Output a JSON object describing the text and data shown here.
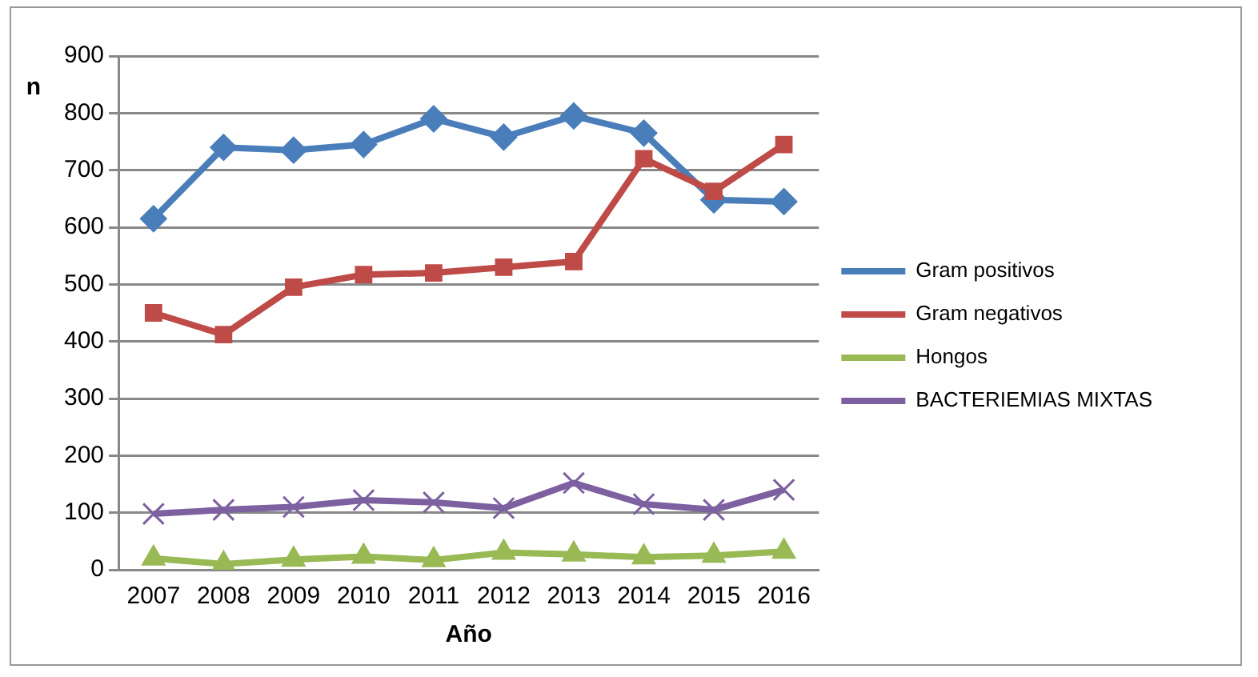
{
  "chart_data": {
    "type": "line",
    "xlabel": "Año",
    "ylabel": "n",
    "categories": [
      "2007",
      "2008",
      "2009",
      "2010",
      "2011",
      "2012",
      "2013",
      "2014",
      "2015",
      "2016"
    ],
    "series": [
      {
        "name": "Gram positivos",
        "color": "#4a7ebb",
        "marker": "diamond",
        "values": [
          615,
          740,
          735,
          745,
          790,
          758,
          795,
          765,
          648,
          645
        ]
      },
      {
        "name": "Gram negativos",
        "color": "#be4b48",
        "marker": "square",
        "values": [
          450,
          412,
          495,
          517,
          520,
          530,
          540,
          720,
          663,
          745
        ]
      },
      {
        "name": "Hongos",
        "color": "#98b954",
        "marker": "triangle",
        "values": [
          20,
          10,
          18,
          23,
          17,
          30,
          27,
          22,
          25,
          32
        ]
      },
      {
        "name": "BACTERIEMIAS MIXTAS",
        "color": "#7d60a0",
        "marker": "cross",
        "values": [
          98,
          105,
          110,
          122,
          118,
          108,
          152,
          115,
          105,
          140
        ]
      }
    ],
    "ylim": [
      0,
      900
    ],
    "yticks": [
      0,
      100,
      200,
      300,
      400,
      500,
      600,
      700,
      800,
      900
    ],
    "grid": "y",
    "legend": "right"
  }
}
